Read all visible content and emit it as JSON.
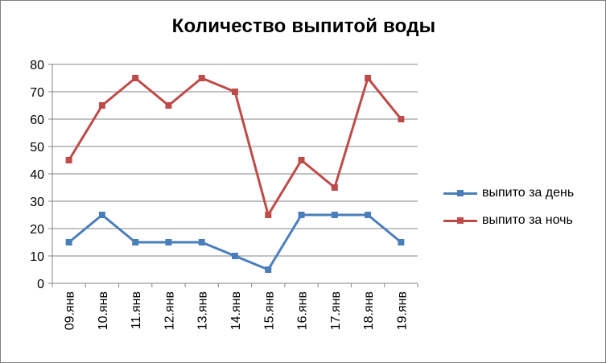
{
  "chart_data": {
    "type": "line",
    "title": "Количество выпитой воды",
    "xlabel": "",
    "ylabel": "",
    "categories": [
      "09.янв",
      "10.янв",
      "11.янв",
      "12.янв",
      "13.янв",
      "14.янв",
      "15.янв",
      "16.янв",
      "17.янв",
      "18.янв",
      "19.янв"
    ],
    "ylim": [
      0,
      80
    ],
    "yticks": [
      0,
      10,
      20,
      30,
      40,
      50,
      60,
      70,
      80
    ],
    "grid": true,
    "legend_position": "right",
    "series": [
      {
        "name": "выпито за день",
        "color": "#4a7ebb",
        "values": [
          15,
          25,
          15,
          15,
          15,
          10,
          5,
          25,
          25,
          25,
          15
        ]
      },
      {
        "name": "выпито за ночь",
        "color": "#be4b48",
        "values": [
          45,
          65,
          75,
          65,
          75,
          70,
          25,
          45,
          35,
          75,
          60
        ]
      }
    ]
  }
}
